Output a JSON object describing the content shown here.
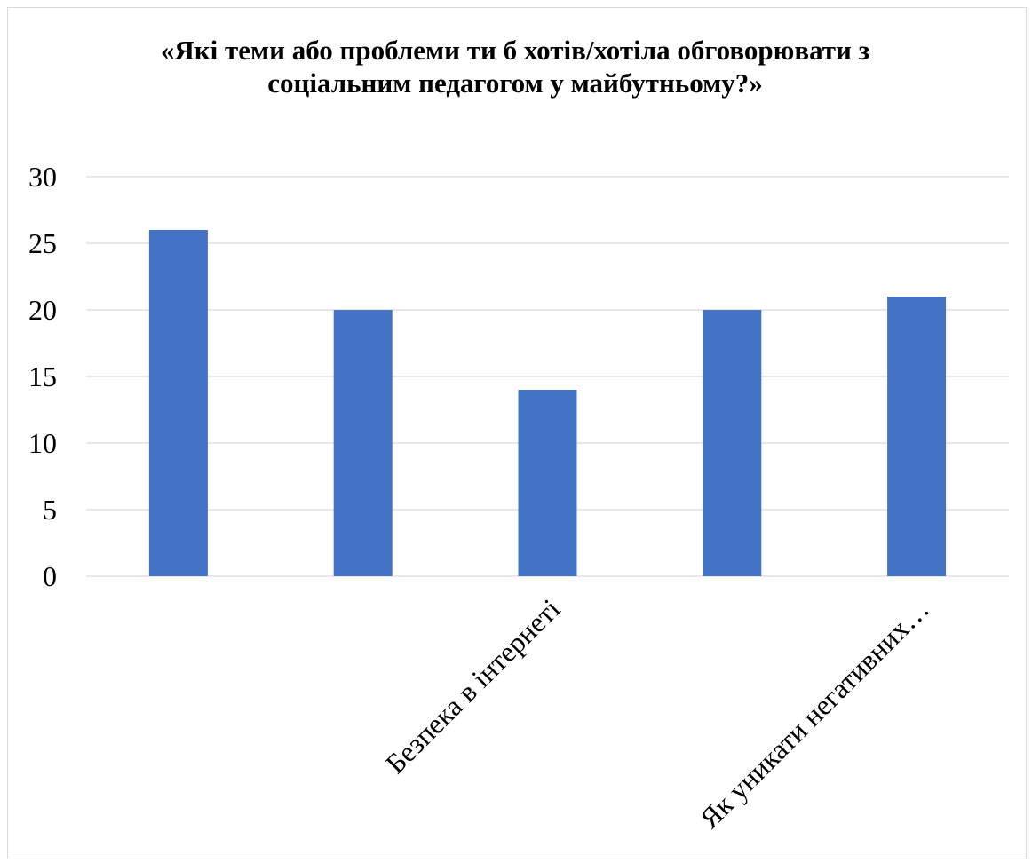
{
  "chart_data": {
    "type": "bar",
    "title": "«Які теми або проблеми ти б хотів/хотіла обговорювати з соціальним педагогом у майбутньому?»",
    "categories": [
      "",
      "",
      "Безпека в інтернеті",
      "",
      "Як уникати негативних…"
    ],
    "values": [
      26,
      20,
      14,
      20,
      21
    ],
    "ylim": [
      0,
      30
    ],
    "yticks": [
      0,
      5,
      10,
      15,
      20,
      25,
      30
    ],
    "grid": true,
    "bar_color": "#4472c4",
    "grid_color": "#d9d9d9",
    "xlabel": "",
    "ylabel": ""
  }
}
